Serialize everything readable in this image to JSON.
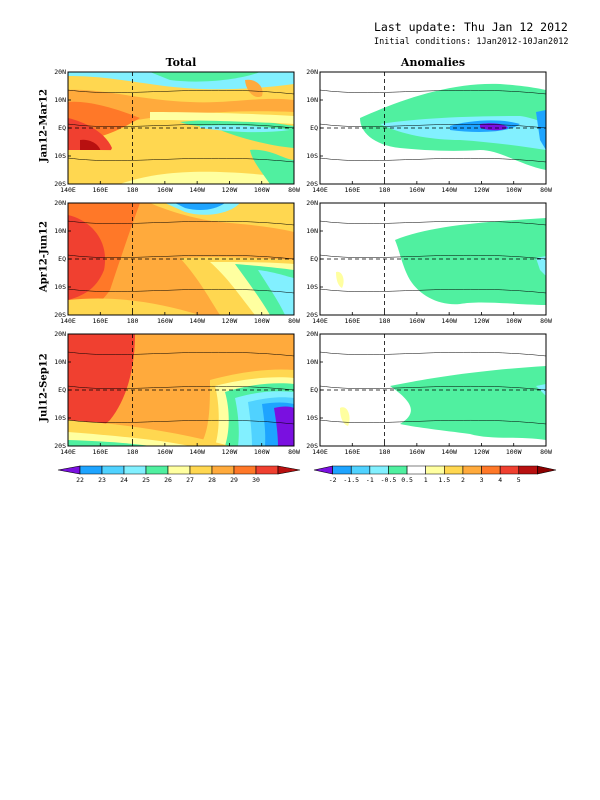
{
  "header": {
    "last_update": "Last update: Thu Jan 12 2012",
    "initial_conditions": "Initial conditions: 1Jan2012-10Jan2012"
  },
  "columns": {
    "total_title": "Total",
    "anomalies_title": "Anomalies"
  },
  "rows": [
    {
      "label": "Jan12-Mar12"
    },
    {
      "label": "Apr12-Jun12"
    },
    {
      "label": "Jul12-Sep12"
    }
  ],
  "chart_data": [
    {
      "type": "heatmap",
      "panel": "Total",
      "x_tick_labels": [
        "140E",
        "160E",
        "180",
        "160W",
        "140W",
        "120W",
        "100W",
        "80W"
      ],
      "y_tick_labels": [
        "20S",
        "10S",
        "EQ",
        "10N",
        "20N"
      ],
      "xlim": [
        "140E",
        "80W"
      ],
      "ylim": [
        "20S",
        "20N"
      ],
      "colorbar": {
        "labels": [
          "22",
          "23",
          "24",
          "25",
          "26",
          "27",
          "28",
          "29",
          "30"
        ],
        "colors": [
          "#7a10e0",
          "#1ea4ff",
          "#50d2ff",
          "#82f0ff",
          "#50f0a0",
          "#ffffa0",
          "#ffd750",
          "#ffaa3c",
          "#ff7828",
          "#f04030",
          "#b81010"
        ]
      },
      "reference_lines": [
        "EQ",
        "180"
      ]
    },
    {
      "type": "heatmap",
      "panel": "Anomalies",
      "x_tick_labels": [
        "140E",
        "160E",
        "180",
        "160W",
        "140W",
        "120W",
        "100W",
        "80W"
      ],
      "y_tick_labels": [
        "20S",
        "10S",
        "EQ",
        "10N",
        "20N"
      ],
      "xlim": [
        "140E",
        "80W"
      ],
      "ylim": [
        "20S",
        "20N"
      ],
      "colorbar": {
        "labels": [
          "-2",
          "-1.5",
          "-1",
          "-0.5",
          "0.5",
          "1",
          "1.5",
          "2",
          "3",
          "4",
          "5"
        ],
        "colors": [
          "#7a10e0",
          "#1ea4ff",
          "#50d2ff",
          "#82f0ff",
          "#50f0a0",
          "#ffffff",
          "#ffffa0",
          "#ffd750",
          "#ffaa3c",
          "#ff7828",
          "#f04030",
          "#b81010",
          "#8c0000"
        ]
      },
      "reference_lines": [
        "EQ",
        "180"
      ]
    }
  ]
}
